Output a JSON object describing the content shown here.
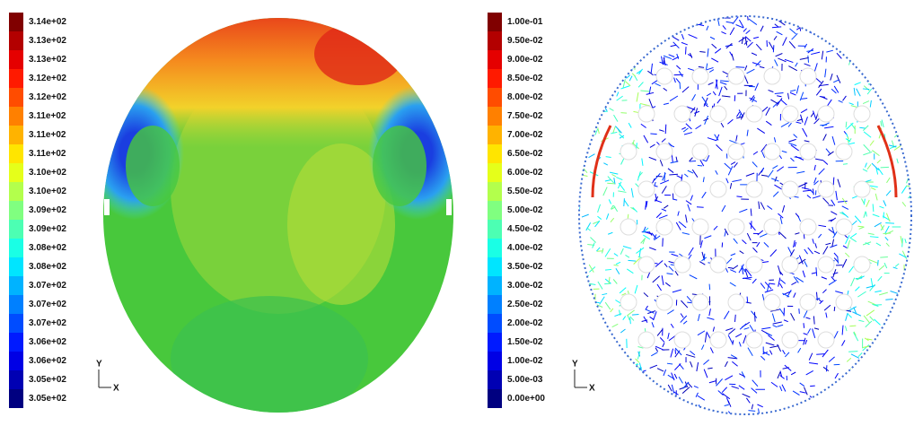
{
  "left_panel": {
    "colorbar_labels": [
      "3.14e+02",
      "3.13e+02",
      "3.13e+02",
      "3.12e+02",
      "3.12e+02",
      "3.11e+02",
      "3.11e+02",
      "3.11e+02",
      "3.10e+02",
      "3.10e+02",
      "3.09e+02",
      "3.09e+02",
      "3.08e+02",
      "3.08e+02",
      "3.07e+02",
      "3.07e+02",
      "3.07e+02",
      "3.06e+02",
      "3.06e+02",
      "3.05e+02",
      "3.05e+02"
    ],
    "axis": {
      "y": "Y",
      "x": "X"
    }
  },
  "right_panel": {
    "colorbar_labels": [
      "1.00e-01",
      "9.50e-02",
      "9.00e-02",
      "8.50e-02",
      "8.00e-02",
      "7.50e-02",
      "7.00e-02",
      "6.50e-02",
      "6.00e-02",
      "5.50e-02",
      "5.00e-02",
      "4.50e-02",
      "4.00e-02",
      "3.50e-02",
      "3.00e-02",
      "2.50e-02",
      "2.00e-02",
      "1.50e-02",
      "1.00e-02",
      "5.00e-03",
      "0.00e+00"
    ],
    "axis": {
      "y": "Y",
      "x": "X"
    }
  }
}
